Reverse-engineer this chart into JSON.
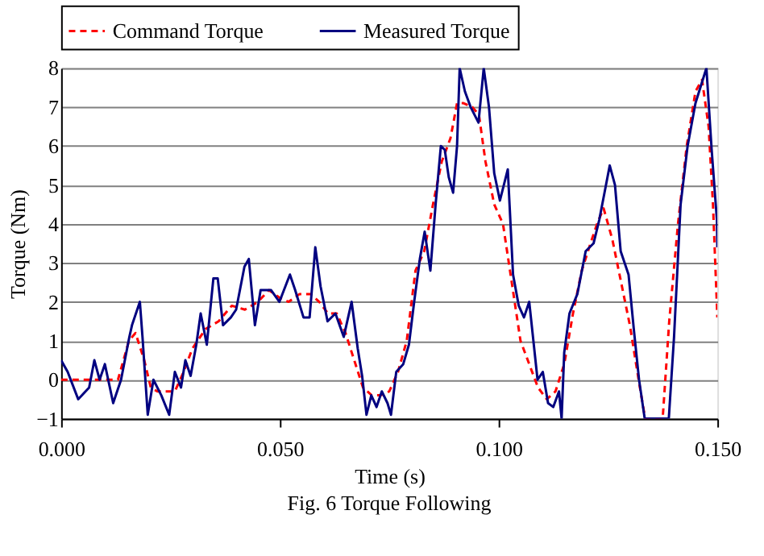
{
  "chart_data": {
    "type": "line",
    "xlabel": "Time (s)",
    "ylabel": "Torque (Nm)",
    "annotations": [
      "Fig. 6 Torque Following"
    ],
    "xlim": [
      0,
      0.15
    ],
    "xticks": [
      {
        "value": 0,
        "label": "0.000"
      },
      {
        "value": 0.05,
        "label": "0.050"
      },
      {
        "value": 0.1,
        "label": "0.100"
      },
      {
        "value": 0.15,
        "label": "0.150"
      }
    ],
    "ylim": [
      -1,
      8
    ],
    "yticks": [
      -1,
      0,
      1,
      2,
      3,
      4,
      5,
      6,
      7,
      8
    ],
    "grid": "y",
    "legend": "top",
    "marker": "none",
    "series": [
      {
        "name": "Command Torque",
        "color": "#ff0000",
        "line_style": "dashed",
        "x": [
          0,
          0.013,
          0.0155,
          0.017,
          0.019,
          0.0205,
          0.022,
          0.026,
          0.028,
          0.03,
          0.033,
          0.036,
          0.039,
          0.042,
          0.045,
          0.0475,
          0.05,
          0.052,
          0.0545,
          0.057,
          0.059,
          0.061,
          0.063,
          0.065,
          0.067,
          0.069,
          0.071,
          0.073,
          0.075,
          0.077,
          0.079,
          0.081,
          0.083,
          0.085,
          0.087,
          0.089,
          0.0905,
          0.092,
          0.094,
          0.0955,
          0.097,
          0.099,
          0.101,
          0.103,
          0.105,
          0.107,
          0.109,
          0.111,
          0.113,
          0.115,
          0.117,
          0.119,
          0.121,
          0.1225,
          0.124,
          0.126,
          0.128,
          0.13,
          0.132,
          0.1335,
          0.1375,
          0.139,
          0.141,
          0.143,
          0.145,
          0.1465,
          0.148,
          0.149,
          0.15
        ],
        "values": [
          0,
          0,
          1.0,
          1.2,
          0.5,
          -0.2,
          -0.3,
          -0.3,
          0.2,
          0.8,
          1.3,
          1.5,
          1.9,
          1.8,
          2.0,
          2.3,
          2.1,
          2.0,
          2.2,
          2.2,
          2.0,
          1.7,
          1.7,
          1.2,
          0.5,
          -0.2,
          -0.4,
          -0.4,
          -0.3,
          0.2,
          1.0,
          2.8,
          3.3,
          4.5,
          5.6,
          6.2,
          7.1,
          7.1,
          7.0,
          6.8,
          5.6,
          4.5,
          4.0,
          2.5,
          1.0,
          0.4,
          -0.2,
          -0.5,
          -0.3,
          0.4,
          1.7,
          2.8,
          3.5,
          4.0,
          4.4,
          3.6,
          2.5,
          1.4,
          0,
          -1,
          -1,
          1.5,
          4.0,
          6.0,
          7.4,
          7.7,
          6.5,
          4.5,
          1.6
        ]
      },
      {
        "name": "Measured Torque",
        "color": "#000080",
        "line_style": "solid",
        "x": [
          0,
          0.0015,
          0.0039,
          0.0064,
          0.0076,
          0.0088,
          0.01,
          0.0119,
          0.0137,
          0.0156,
          0.0162,
          0.018,
          0.0186,
          0.0198,
          0.0211,
          0.0229,
          0.0247,
          0.026,
          0.0274,
          0.0284,
          0.0296,
          0.0309,
          0.0319,
          0.0333,
          0.0348,
          0.0358,
          0.037,
          0.0388,
          0.04,
          0.0419,
          0.0429,
          0.0443,
          0.0456,
          0.048,
          0.0499,
          0.0523,
          0.0535,
          0.0554,
          0.0568,
          0.0581,
          0.0593,
          0.0609,
          0.0627,
          0.0646,
          0.0664,
          0.0678,
          0.0688,
          0.0698,
          0.0709,
          0.0721,
          0.0733,
          0.0746,
          0.0754,
          0.0766,
          0.0782,
          0.0795,
          0.0807,
          0.082,
          0.0831,
          0.0844,
          0.0856,
          0.0868,
          0.0877,
          0.0886,
          0.0896,
          0.0905,
          0.0911,
          0.0923,
          0.0936,
          0.0954,
          0.0966,
          0.0978,
          0.099,
          0.1003,
          0.1021,
          0.1033,
          0.1046,
          0.1058,
          0.107,
          0.1089,
          0.1101,
          0.1113,
          0.1125,
          0.1138,
          0.1144,
          0.115,
          0.1162,
          0.118,
          0.1199,
          0.1217,
          0.123,
          0.1242,
          0.1254,
          0.1266,
          0.1279,
          0.1297,
          0.1309,
          0.1321,
          0.1334,
          0.1389,
          0.1401,
          0.1416,
          0.1432,
          0.145,
          0.1475,
          0.1487,
          0.1499,
          0.15
        ],
        "values": [
          0.5,
          0.2,
          -0.5,
          -0.2,
          0.5,
          0,
          0.4,
          -0.6,
          0,
          1.1,
          1.4,
          2.0,
          1.1,
          -0.9,
          0,
          -0.4,
          -0.9,
          0.2,
          -0.2,
          0.5,
          0.1,
          0.9,
          1.7,
          0.9,
          2.6,
          2.6,
          1.4,
          1.6,
          1.8,
          2.9,
          3.1,
          1.4,
          2.3,
          2.3,
          2.0,
          2.7,
          2.3,
          1.6,
          1.6,
          3.4,
          2.4,
          1.5,
          1.7,
          1.1,
          2.0,
          0.8,
          0.1,
          -0.9,
          -0.4,
          -0.7,
          -0.3,
          -0.6,
          -0.9,
          0.2,
          0.4,
          0.9,
          2.0,
          3.1,
          3.8,
          2.8,
          4.5,
          6.0,
          5.9,
          5.2,
          4.8,
          6.0,
          8,
          7.4,
          7.0,
          6.6,
          8,
          7.0,
          5.3,
          4.6,
          5.4,
          2.7,
          1.9,
          1.6,
          2.0,
          0,
          0.2,
          -0.6,
          -0.7,
          -0.3,
          -1,
          0.7,
          1.7,
          2.2,
          3.3,
          3.5,
          4.1,
          4.8,
          5.5,
          5.0,
          3.3,
          2.7,
          1.3,
          0,
          -1,
          -1,
          1.1,
          4.5,
          6.0,
          7.1,
          8,
          5.9,
          4.1,
          3.4
        ]
      }
    ]
  }
}
